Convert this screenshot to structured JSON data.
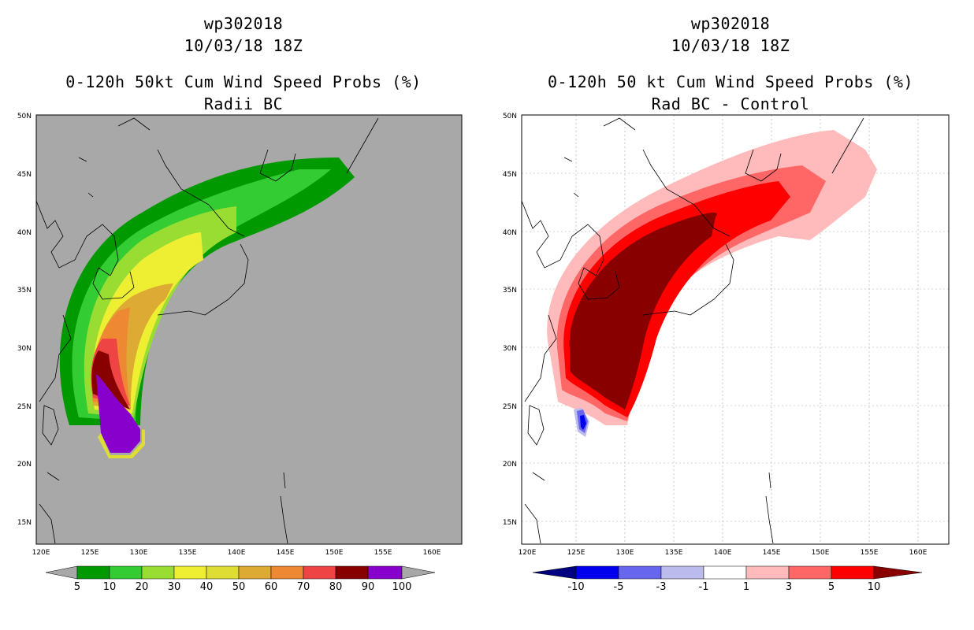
{
  "left_panel": {
    "title_line1": "wp302018",
    "title_line2": "10/03/18 18Z",
    "title_line3": "0-120h 50kt Cum Wind Speed Probs (%)",
    "title_line4": "Radii BC",
    "lat_labels": [
      "50N",
      "45N",
      "40N",
      "35N",
      "30N",
      "25N",
      "20N",
      "15N"
    ],
    "lon_labels": [
      "120E",
      "125E",
      "130E",
      "135E",
      "140E",
      "145E",
      "150E",
      "155E",
      "160E"
    ],
    "colorbar": {
      "labels": [
        "5",
        "10",
        "20",
        "30",
        "40",
        "50",
        "60",
        "70",
        "80",
        "90",
        "100"
      ],
      "colors": [
        "#009900",
        "#33cc33",
        "#99dd33",
        "#eeee33",
        "#dddd33",
        "#ddaa33",
        "#ee8833",
        "#ee4444",
        "#880000",
        "#8800cc"
      ]
    }
  },
  "right_panel": {
    "title_line1": "wp302018",
    "title_line2": "10/03/18 18Z",
    "title_line3": "0-120h 50 kt Cum Wind Speed Probs (%)",
    "title_line4": "Rad BC - Control",
    "lat_labels": [
      "50N",
      "45N",
      "40N",
      "35N",
      "30N",
      "25N",
      "20N",
      "15N"
    ],
    "lon_labels": [
      "120E",
      "125E",
      "130E",
      "135E",
      "140E",
      "145E",
      "150E",
      "155E",
      "160E"
    ],
    "colorbar": {
      "labels": [
        "-10",
        "-5",
        "-3",
        "-1",
        "1",
        "3",
        "5",
        "10"
      ],
      "colors": [
        "#0000ee",
        "#6666ee",
        "#bbbbee",
        "#ffffff",
        "#ffbbbb",
        "#ff6666",
        "#ff0000"
      ]
    }
  }
}
